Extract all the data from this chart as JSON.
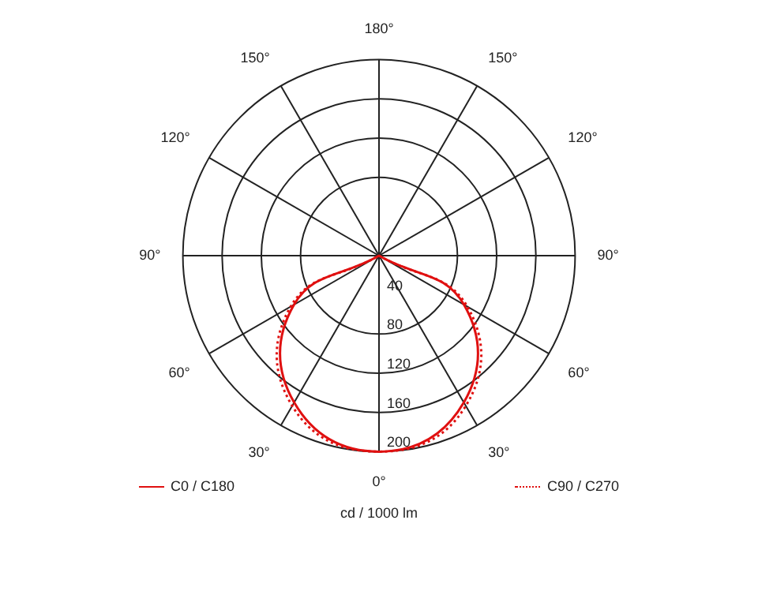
{
  "chart_data": {
    "type": "radar",
    "xlabel": "cd / 1000 lm",
    "categories": [
      "180°",
      "150°",
      "120°",
      "90°",
      "60°",
      "30°",
      "0°",
      "30°",
      "60°",
      "90°",
      "120°",
      "150°"
    ],
    "ylim": [
      0,
      200
    ],
    "yticks": [
      40,
      80,
      120,
      160,
      200
    ],
    "grid": true,
    "legend": "bottom",
    "marker": "none",
    "series": [
      {
        "name": "C0 / C180",
        "color": "#e01010",
        "line_style": "solid",
        "values": [
          0,
          0,
          0,
          0,
          100,
          173,
          200,
          173,
          100,
          0,
          0,
          0
        ]
      },
      {
        "name": "C90 / C270",
        "color": "#e01010",
        "line_style": "dotted",
        "values": [
          0,
          0,
          0,
          0,
          104,
          177,
          200,
          177,
          104,
          0,
          0,
          0
        ]
      }
    ]
  }
}
